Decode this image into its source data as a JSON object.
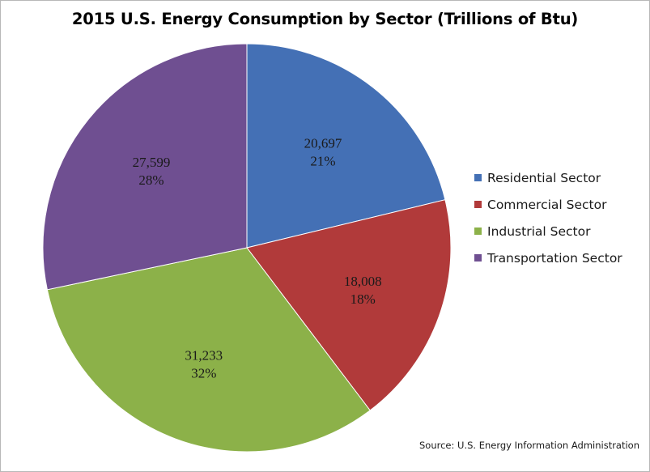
{
  "chart_data": {
    "type": "pie",
    "title": "2015 U.S. Energy Consumption by Sector (Trillions of Btu)",
    "categories": [
      "Residential Sector",
      "Commercial Sector",
      "Industrial Sector",
      "Transportation Sector"
    ],
    "values": [
      20697,
      18008,
      31233,
      27599
    ],
    "value_labels": [
      "20,697",
      "18,008",
      "31,233",
      "27,599"
    ],
    "percent_labels": [
      "21%",
      "18%",
      "32%",
      "28%"
    ],
    "colors": [
      "#4470b5",
      "#b13a3a",
      "#8cb149",
      "#6f4f91"
    ],
    "legend_position": "right",
    "start_angle": "12 o'clock",
    "direction": "clockwise"
  },
  "source": "Source: U.S. Energy Information Administration"
}
